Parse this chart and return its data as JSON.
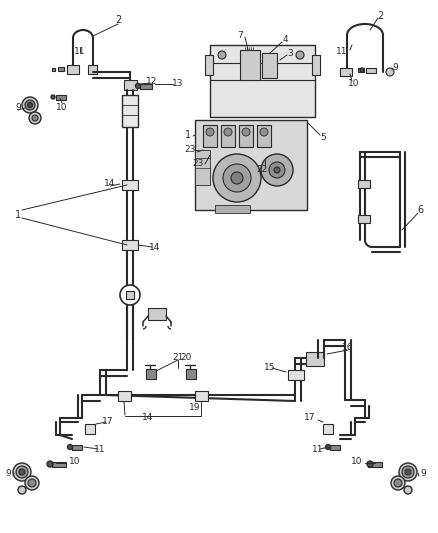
{
  "bg_color": "#ffffff",
  "lc": "#2a2a2a",
  "fig_width": 4.38,
  "fig_height": 5.33,
  "dpi": 100
}
